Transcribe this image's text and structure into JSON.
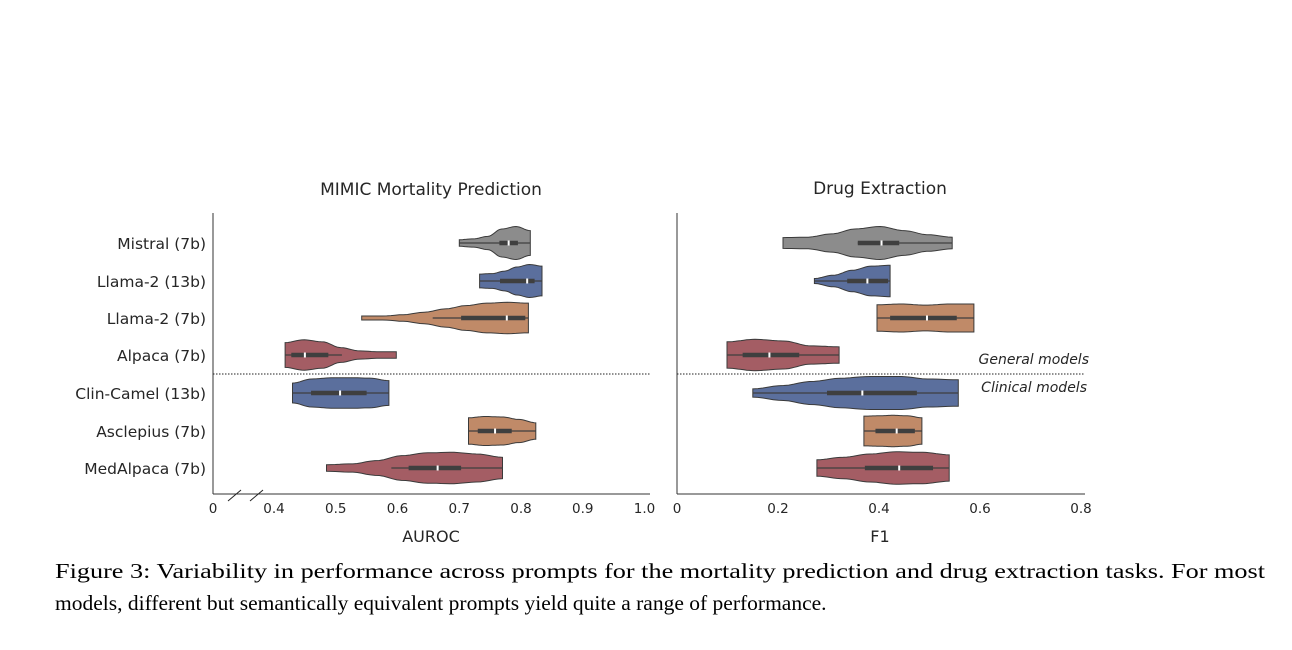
{
  "caption": {
    "line1": "Figure 3: Variability in performance across prompts for the mortality prediction and drug extraction tasks. For most",
    "line2": "models, different but semantically equivalent prompts yield quite a range of performance."
  },
  "colors": {
    "Mistral": "#8c8c8c",
    "Llama-2 (13b)": "#5b6f9d",
    "Llama-2 (7b)": "#c08a68",
    "Alpaca (7b)": "#a45d64",
    "Clin-Camel (13b)": "#5b6f9d",
    "Asclepius (7b)": "#c08a68",
    "MedAlpaca (7b)": "#a45d64",
    "box": "#3f3f3f"
  },
  "group_labels": {
    "general": "General models",
    "clinical": "Clinical models"
  },
  "chart_data": [
    {
      "type": "violin",
      "title": "MIMIC Mortality Prediction",
      "xlabel": "AUROC",
      "ylabel": "",
      "xlim": [
        0,
        1.0
      ],
      "axis_break": [
        0,
        0.4
      ],
      "xticks": [
        "0",
        "0.4",
        "0.5",
        "0.6",
        "0.7",
        "0.8",
        "0.9",
        "1.0"
      ],
      "xtick_values": [
        0,
        0.4,
        0.5,
        0.6,
        0.7,
        0.8,
        0.9,
        1.0
      ],
      "categories": [
        "Mistral (7b)",
        "Llama-2 (13b)",
        "Llama-2 (7b)",
        "Alpaca (7b)",
        "Clin-Camel (13b)",
        "Asclepius (7b)",
        "MedAlpaca (7b)"
      ],
      "series": [
        {
          "category": "Mistral (7b)",
          "min": 0.7,
          "max": 0.815,
          "q1": 0.765,
          "median": 0.78,
          "q3": 0.795,
          "whisker": [
            0.7,
            0.815
          ],
          "density": [
            0.2,
            0.25,
            0.4,
            0.85,
            1.0,
            0.75
          ]
        },
        {
          "category": "Llama-2 (13b)",
          "min": 0.733,
          "max": 0.834,
          "q1": 0.766,
          "median": 0.81,
          "q3": 0.822,
          "whisker": [
            0.733,
            0.834
          ],
          "density": [
            0.42,
            0.45,
            0.6,
            0.85,
            1.0,
            0.9
          ]
        },
        {
          "category": "Llama-2 (7b)",
          "min": 0.542,
          "max": 0.812,
          "q1": 0.703,
          "median": 0.777,
          "q3": 0.807,
          "whisker": [
            0.657,
            0.812
          ],
          "density": [
            0.12,
            0.12,
            0.2,
            0.35,
            0.55,
            0.75,
            0.9,
            0.95,
            0.9
          ]
        },
        {
          "category": "Alpaca (7b)",
          "min": 0.418,
          "max": 0.598,
          "q1": 0.428,
          "median": 0.45,
          "q3": 0.488,
          "whisker": [
            0.418,
            0.51
          ],
          "density": [
            0.75,
            0.92,
            0.8,
            0.45,
            0.25,
            0.2,
            0.2
          ]
        },
        {
          "category": "Clin-Camel (13b)",
          "min": 0.43,
          "max": 0.586,
          "q1": 0.46,
          "median": 0.507,
          "q3": 0.55,
          "whisker": [
            0.43,
            0.586
          ],
          "density": [
            0.6,
            0.85,
            0.92,
            0.93,
            0.9,
            0.75
          ]
        },
        {
          "category": "Asclepius (7b)",
          "min": 0.715,
          "max": 0.824,
          "q1": 0.73,
          "median": 0.758,
          "q3": 0.785,
          "whisker": [
            0.715,
            0.824
          ],
          "density": [
            0.8,
            0.88,
            0.85,
            0.7,
            0.5
          ]
        },
        {
          "category": "MedAlpaca (7b)",
          "min": 0.485,
          "max": 0.77,
          "q1": 0.618,
          "median": 0.665,
          "q3": 0.703,
          "whisker": [
            0.59,
            0.77
          ],
          "density": [
            0.2,
            0.25,
            0.45,
            0.75,
            0.92,
            0.95,
            0.85,
            0.65
          ]
        }
      ]
    },
    {
      "type": "violin",
      "title": "Drug Extraction",
      "xlabel": "F1",
      "ylabel": "",
      "xlim": [
        0,
        0.8
      ],
      "xticks": [
        "0",
        "0.2",
        "0.4",
        "0.6",
        "0.8"
      ],
      "xtick_values": [
        0,
        0.2,
        0.4,
        0.6,
        0.8
      ],
      "categories": [
        "Mistral (7b)",
        "Llama-2 (13b)",
        "Llama-2 (7b)",
        "Alpaca (7b)",
        "Clin-Camel (13b)",
        "Asclepius (7b)",
        "MedAlpaca (7b)"
      ],
      "series": [
        {
          "category": "Mistral (7b)",
          "min": 0.21,
          "max": 0.545,
          "q1": 0.358,
          "median": 0.405,
          "q3": 0.44,
          "whisker": [
            0.358,
            0.545
          ],
          "density": [
            0.33,
            0.35,
            0.55,
            0.85,
            1.0,
            0.75,
            0.5,
            0.35
          ]
        },
        {
          "category": "Llama-2 (13b)",
          "min": 0.272,
          "max": 0.422,
          "q1": 0.337,
          "median": 0.377,
          "q3": 0.418,
          "whisker": [
            0.272,
            0.422
          ],
          "density": [
            0.15,
            0.35,
            0.65,
            0.9,
            0.95
          ]
        },
        {
          "category": "Llama-2 (7b)",
          "min": 0.396,
          "max": 0.588,
          "q1": 0.422,
          "median": 0.495,
          "q3": 0.554,
          "whisker": [
            0.396,
            0.588
          ],
          "density": [
            0.8,
            0.85,
            0.78,
            0.85,
            0.85
          ]
        },
        {
          "category": "Alpaca (7b)",
          "min": 0.099,
          "max": 0.321,
          "q1": 0.13,
          "median": 0.183,
          "q3": 0.242,
          "whisker": [
            0.099,
            0.321
          ],
          "density": [
            0.8,
            0.95,
            0.85,
            0.55,
            0.5
          ]
        },
        {
          "category": "Clin-Camel (13b)",
          "min": 0.15,
          "max": 0.557,
          "q1": 0.297,
          "median": 0.367,
          "q3": 0.475,
          "whisker": [
            0.15,
            0.557
          ],
          "density": [
            0.25,
            0.45,
            0.7,
            0.9,
            1.0,
            1.0,
            0.85,
            0.8
          ]
        },
        {
          "category": "Asclepius (7b)",
          "min": 0.37,
          "max": 0.485,
          "q1": 0.393,
          "median": 0.435,
          "q3": 0.471,
          "whisker": [
            0.37,
            0.485
          ],
          "density": [
            0.9,
            0.92,
            0.95,
            0.92,
            0.8
          ]
        },
        {
          "category": "MedAlpaca (7b)",
          "min": 0.277,
          "max": 0.539,
          "q1": 0.372,
          "median": 0.44,
          "q3": 0.507,
          "whisker": [
            0.277,
            0.539
          ],
          "density": [
            0.5,
            0.65,
            0.85,
            0.98,
            0.95,
            0.8
          ]
        }
      ]
    }
  ]
}
